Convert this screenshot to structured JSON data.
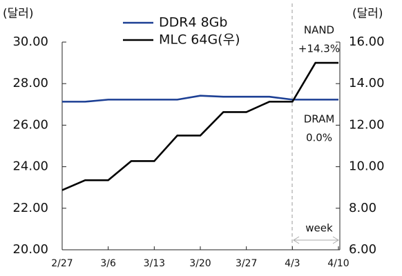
{
  "chart_data": {
    "type": "line",
    "y_label": "(달러)",
    "y2_label": "(달러)",
    "categories": [
      "2/27",
      null,
      "3/6",
      null,
      "3/13",
      null,
      "3/20",
      null,
      "3/27",
      null,
      "4/3",
      null,
      "4/10"
    ],
    "series": [
      {
        "name": "DDR4 8Gb",
        "color": "#1c3f94",
        "values": [
          27.13,
          27.13,
          27.23,
          27.23,
          27.23,
          27.23,
          27.42,
          27.37,
          27.37,
          27.37,
          27.23,
          27.23,
          27.23
        ]
      },
      {
        "name": "MLC 64G(우)",
        "color": "#000000",
        "axis": "y2",
        "values": [
          8.87,
          9.35,
          9.35,
          10.27,
          10.27,
          11.5,
          11.5,
          12.63,
          12.63,
          13.13,
          13.13,
          15.0,
          15.0
        ]
      }
    ],
    "ylim": [
      20,
      30
    ],
    "yticks": [
      {
        "value": 20,
        "label": "20.00"
      },
      {
        "value": 22,
        "label": "22.00"
      },
      {
        "value": 24,
        "label": "24.00"
      },
      {
        "value": 26,
        "label": "26.00"
      },
      {
        "value": 28,
        "label": "28.00"
      },
      {
        "value": 30,
        "label": "30.00"
      }
    ],
    "y2lim": [
      6,
      16
    ],
    "y2ticks": [
      {
        "value": 6,
        "label": "6.00"
      },
      {
        "value": 8,
        "label": "8.00"
      },
      {
        "value": 10,
        "label": "10.00"
      },
      {
        "value": 12,
        "label": "12.00"
      },
      {
        "value": 14,
        "label": "14.00"
      },
      {
        "value": 16,
        "label": "16.00"
      }
    ],
    "annotations": [
      "NAND",
      "+14.3%",
      "DRAM",
      "0.0%",
      "week"
    ]
  }
}
